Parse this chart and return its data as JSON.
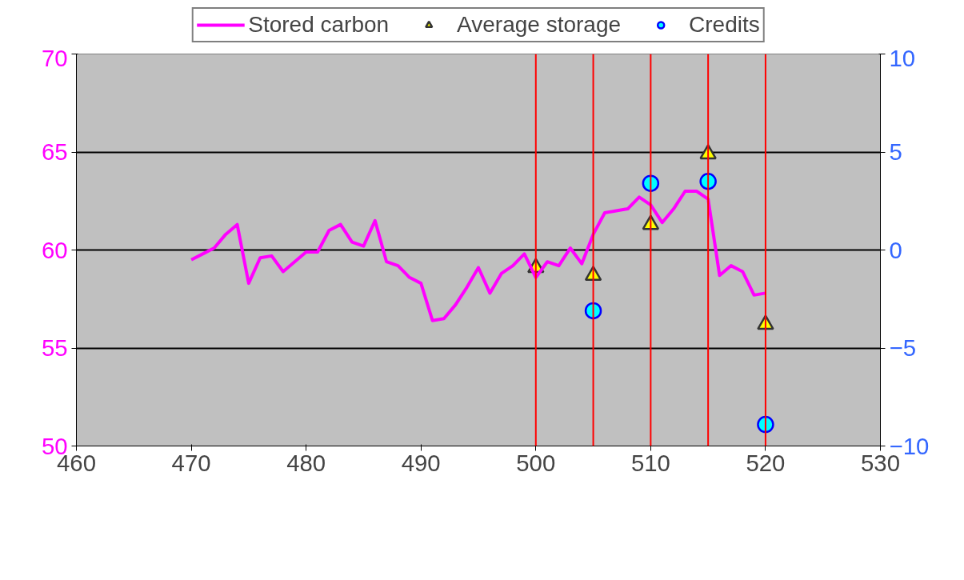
{
  "chart_data": {
    "type": "line",
    "xlim": [
      460,
      530
    ],
    "xticks": [
      460,
      470,
      480,
      490,
      500,
      510,
      520,
      530
    ],
    "ylim": [
      50,
      70
    ],
    "yticks": [
      50,
      55,
      60,
      65,
      70
    ],
    "y2lim": [
      -10,
      10
    ],
    "y2ticks": [
      -10,
      -5,
      0,
      5,
      10
    ],
    "grid": "y",
    "legend": "top",
    "series": [
      {
        "name": "Stored carbon",
        "color": "#ff00ff",
        "x": [
          470,
          471,
          472,
          473,
          474,
          475,
          476,
          477,
          478,
          479,
          480,
          481,
          482,
          483,
          484,
          485,
          486,
          487,
          488,
          489,
          490,
          491,
          492,
          493,
          494,
          495,
          496,
          497,
          498,
          499,
          500,
          501,
          502,
          503,
          504,
          505,
          506,
          507,
          508,
          509,
          510,
          511,
          512,
          513,
          514,
          515,
          516,
          517,
          518,
          519,
          520
        ],
        "values": [
          59.5,
          59.8,
          60.1,
          60.8,
          61.3,
          58.3,
          59.6,
          59.7,
          58.9,
          59.4,
          59.9,
          59.9,
          61.0,
          61.3,
          60.4,
          60.2,
          61.5,
          59.4,
          59.2,
          58.6,
          58.3,
          56.4,
          56.5,
          57.2,
          58.1,
          59.1,
          57.8,
          58.8,
          59.2,
          59.8,
          58.6,
          59.4,
          59.2,
          60.1,
          59.3,
          60.8,
          61.9,
          62.0,
          62.1,
          62.7,
          62.3,
          61.4,
          62.1,
          63.0,
          63.0,
          62.6,
          58.7,
          59.2,
          58.9,
          57.7,
          57.8
        ]
      },
      {
        "name": "Average storage",
        "type": "scatter",
        "marker": "triangle",
        "color": "#ffff00",
        "x": [
          500,
          505,
          510,
          515,
          520
        ],
        "values": [
          59.1,
          58.7,
          61.3,
          64.9,
          56.2
        ]
      },
      {
        "name": "Credits",
        "type": "scatter",
        "marker": "circle",
        "axis": "y2",
        "color": "#00ffff",
        "x": [
          505,
          510,
          515,
          520
        ],
        "values": [
          -3.1,
          3.4,
          3.5,
          -8.9
        ]
      }
    ],
    "ref_lines": [
      {
        "axis": "x",
        "value": 500,
        "color": "#ff0000"
      },
      {
        "axis": "x",
        "value": 505,
        "color": "#ff0000"
      },
      {
        "axis": "x",
        "value": 510,
        "color": "#ff0000"
      },
      {
        "axis": "x",
        "value": 515,
        "color": "#ff0000"
      },
      {
        "axis": "x",
        "value": 520,
        "color": "#ff0000"
      }
    ]
  }
}
